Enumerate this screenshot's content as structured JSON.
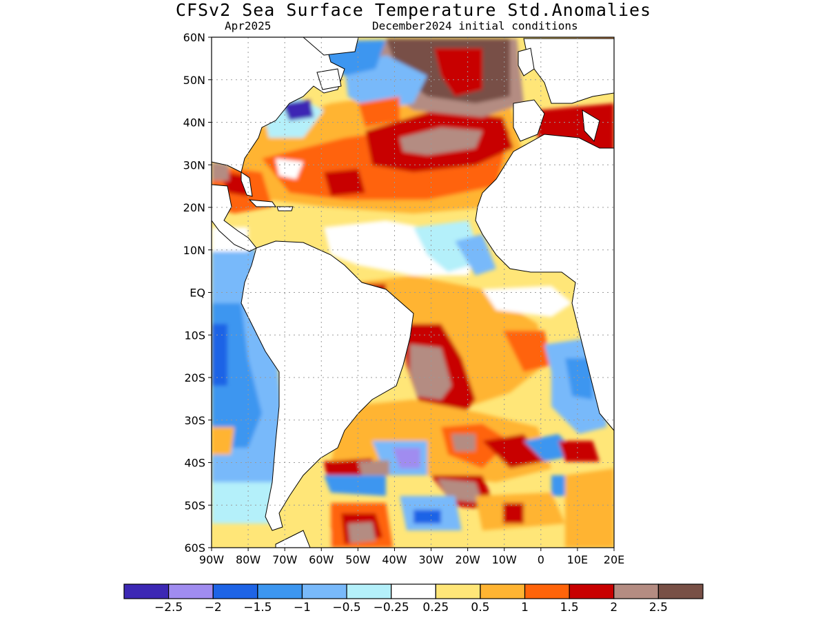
{
  "title": "CFSv2 Sea Surface Temperature Std.Anomalies",
  "subtitle_left": "Apr2025",
  "subtitle_right": "December2024 initial conditions",
  "lat_labels": [
    "60N",
    "50N",
    "40N",
    "30N",
    "20N",
    "10N",
    "EQ",
    "10S",
    "20S",
    "30S",
    "40S",
    "50S",
    "60S"
  ],
  "lon_labels": [
    "90W",
    "80W",
    "70W",
    "60W",
    "50W",
    "40W",
    "30W",
    "20W",
    "10W",
    "0",
    "10E",
    "20E"
  ],
  "colorbar": {
    "colors": [
      "#3c28b4",
      "#a08cf0",
      "#1e64e6",
      "#3c96f0",
      "#78b9fa",
      "#b4f0fa",
      "#ffffff",
      "#ffe678",
      "#ffb432",
      "#ff640a",
      "#c80000",
      "#b48c82",
      "#785046"
    ],
    "labels": [
      "−2.5",
      "−2",
      "−1.5",
      "−1",
      "−0.5",
      "−0.25",
      "0.25",
      "0.5",
      "1",
      "1.5",
      "2",
      "2.5"
    ]
  },
  "map": {
    "extent": {
      "lon": [
        -90,
        20
      ],
      "lat": [
        -60,
        60
      ]
    },
    "colors": {
      "land": "#ffffff",
      "coast": "#000000",
      "grid": "#9a9a9a"
    }
  }
}
